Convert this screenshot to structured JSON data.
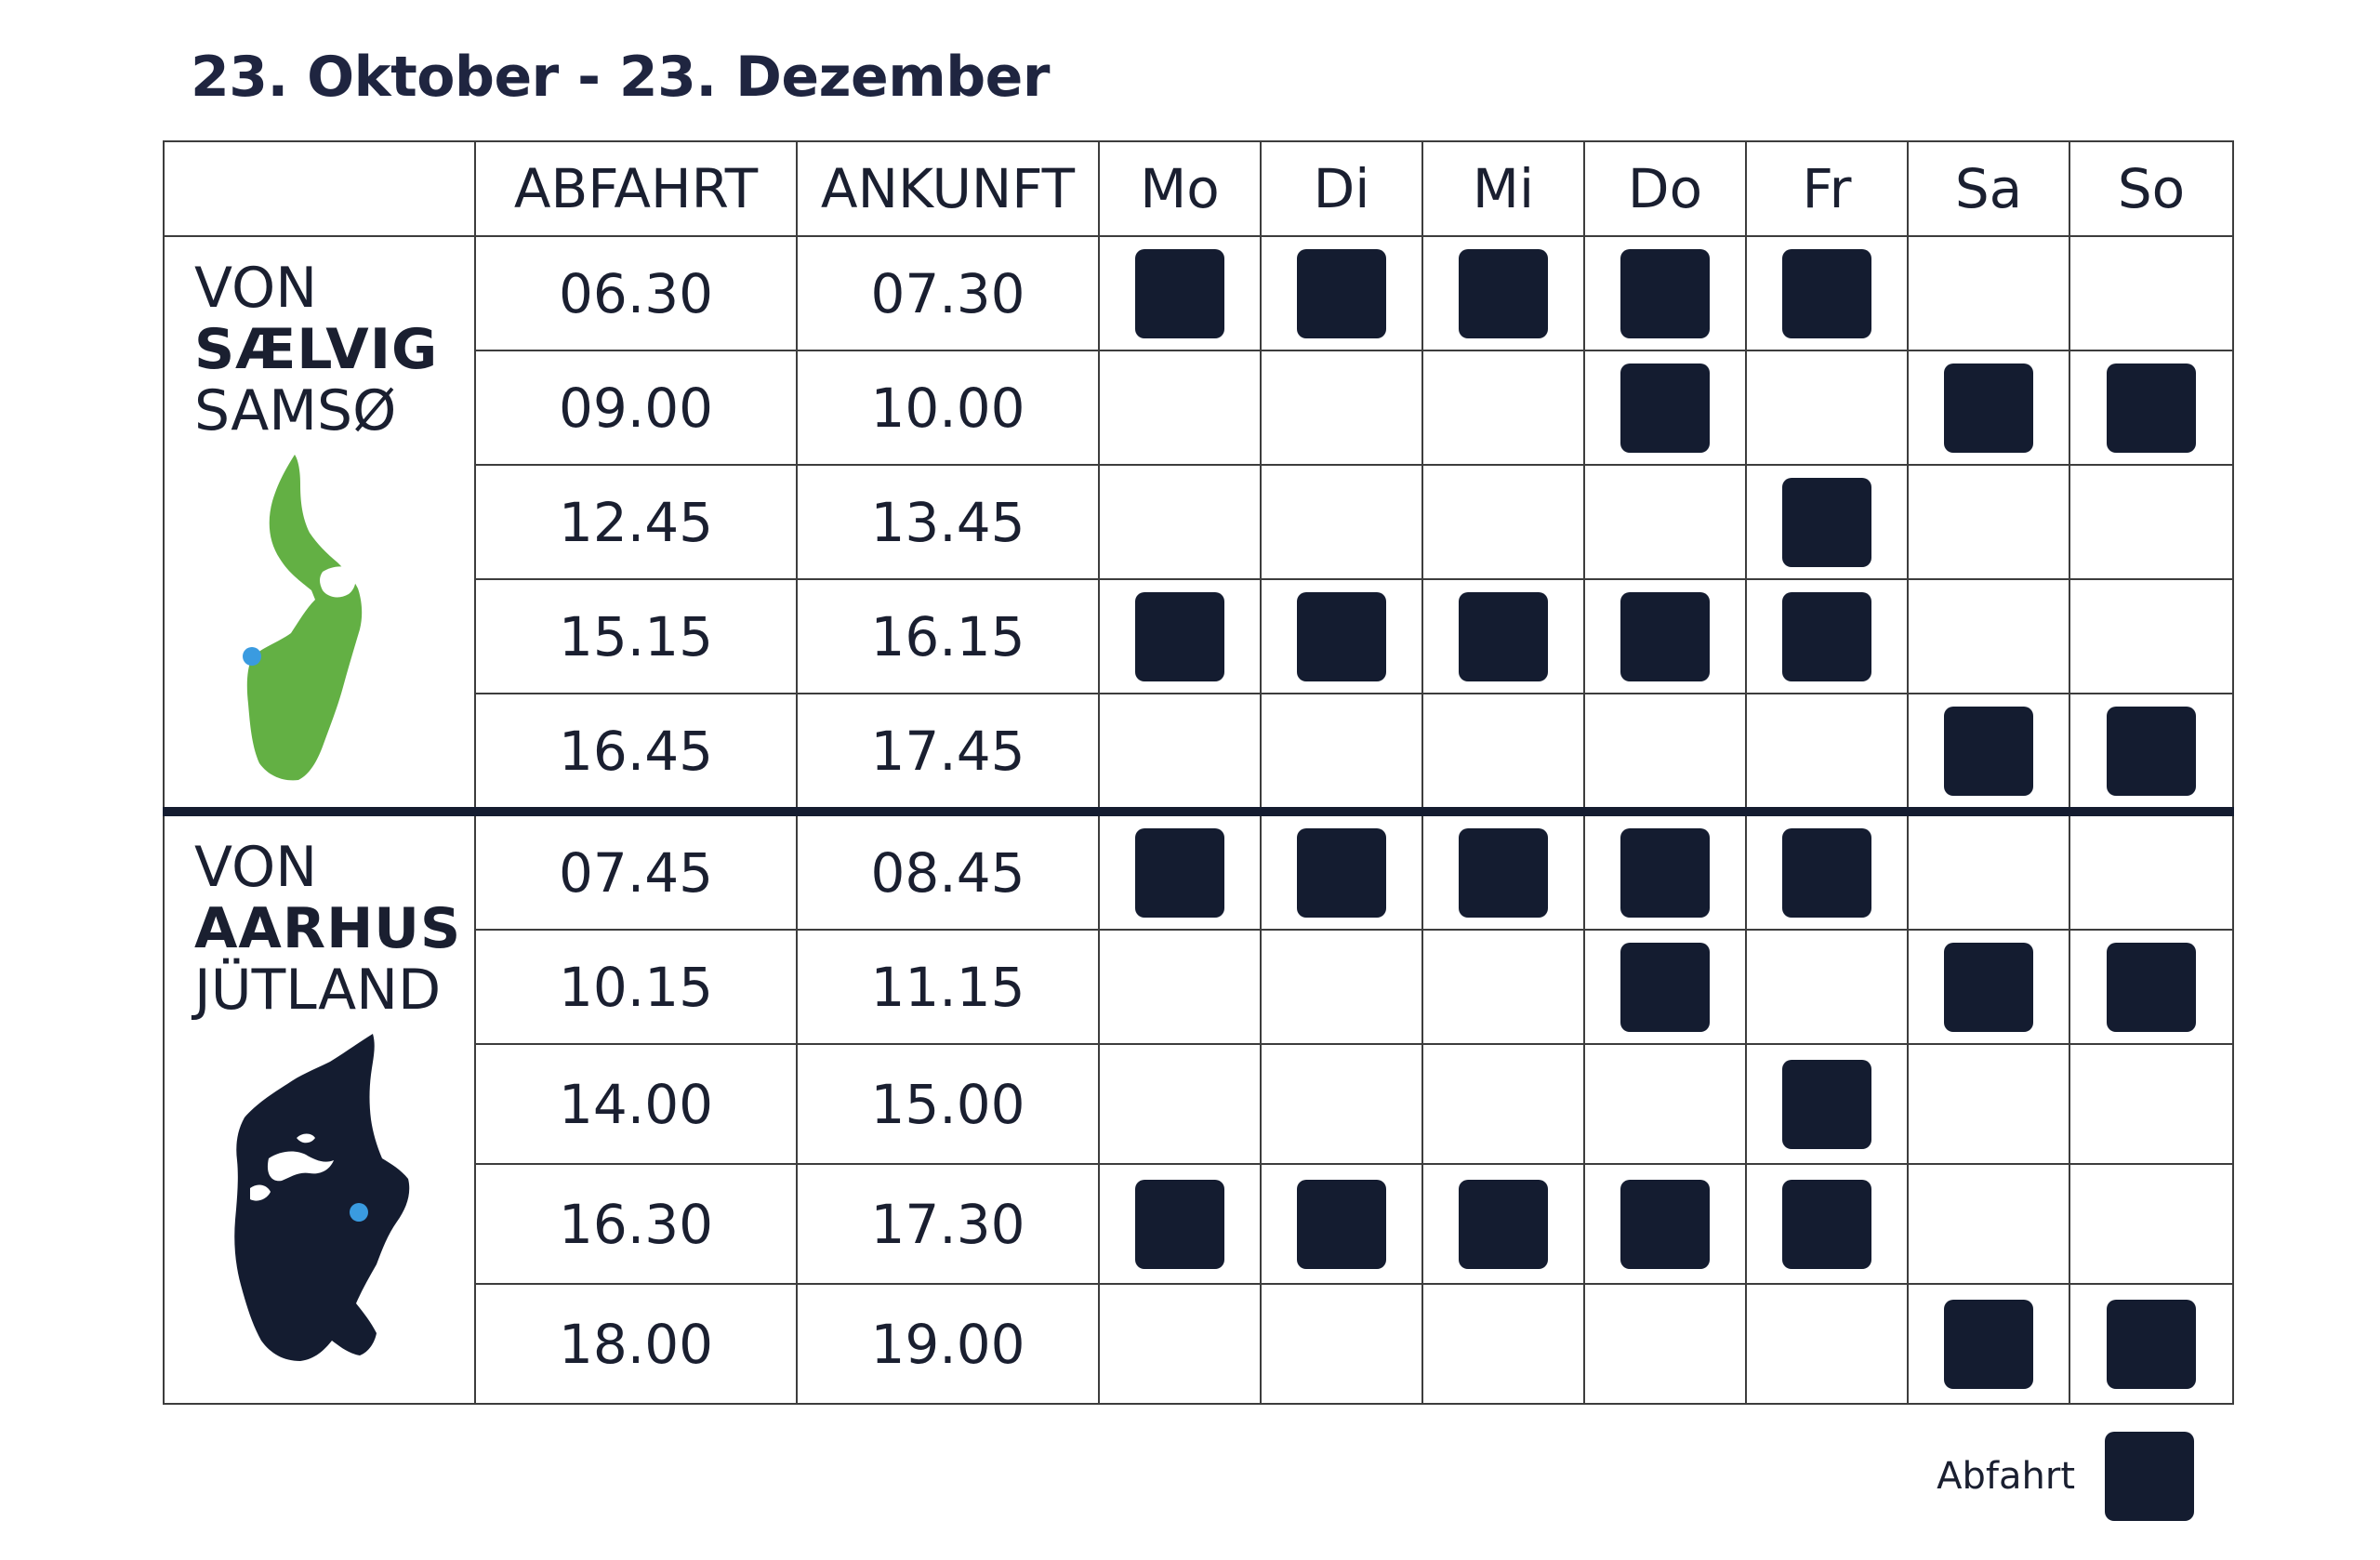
{
  "title": "23. Oktober - 23. Dezember",
  "header": {
    "abfahrt": "ABFAHRT",
    "ankunft": "ANKUNFT",
    "days": [
      "Mo",
      "Di",
      "Mi",
      "Do",
      "Fr",
      "Sa",
      "So"
    ]
  },
  "routes": [
    {
      "von": "VON",
      "port": "SÆLVIG",
      "region": "SAMSØ",
      "map_icon": "samso-island-map",
      "map_color": "#63b044",
      "marker_color": "#3a9be0",
      "rows": [
        {
          "dep": "06.30",
          "arr": "07.30",
          "days": [
            1,
            1,
            1,
            1,
            1,
            0,
            0
          ]
        },
        {
          "dep": "09.00",
          "arr": "10.00",
          "days": [
            0,
            0,
            0,
            1,
            0,
            1,
            1
          ]
        },
        {
          "dep": "12.45",
          "arr": "13.45",
          "days": [
            0,
            0,
            0,
            0,
            1,
            0,
            0
          ]
        },
        {
          "dep": "15.15",
          "arr": "16.15",
          "days": [
            1,
            1,
            1,
            1,
            1,
            0,
            0
          ]
        },
        {
          "dep": "16.45",
          "arr": "17.45",
          "days": [
            0,
            0,
            0,
            0,
            0,
            1,
            1
          ]
        }
      ]
    },
    {
      "von": "VON",
      "port": "AARHUS",
      "region": "JÜTLAND",
      "map_icon": "jutland-map",
      "map_color": "#141c30",
      "marker_color": "#3a9be0",
      "rows": [
        {
          "dep": "07.45",
          "arr": "08.45",
          "days": [
            1,
            1,
            1,
            1,
            1,
            0,
            0
          ]
        },
        {
          "dep": "10.15",
          "arr": "11.15",
          "days": [
            0,
            0,
            0,
            1,
            0,
            1,
            1
          ]
        },
        {
          "dep": "14.00",
          "arr": "15.00",
          "days": [
            0,
            0,
            0,
            0,
            1,
            0,
            0
          ]
        },
        {
          "dep": "16.30",
          "arr": "17.30",
          "days": [
            1,
            1,
            1,
            1,
            1,
            0,
            0
          ]
        },
        {
          "dep": "18.00",
          "arr": "19.00",
          "days": [
            0,
            0,
            0,
            0,
            0,
            1,
            1
          ]
        }
      ]
    }
  ],
  "legend": {
    "label": "Abfahrt",
    "color": "#141c30"
  }
}
